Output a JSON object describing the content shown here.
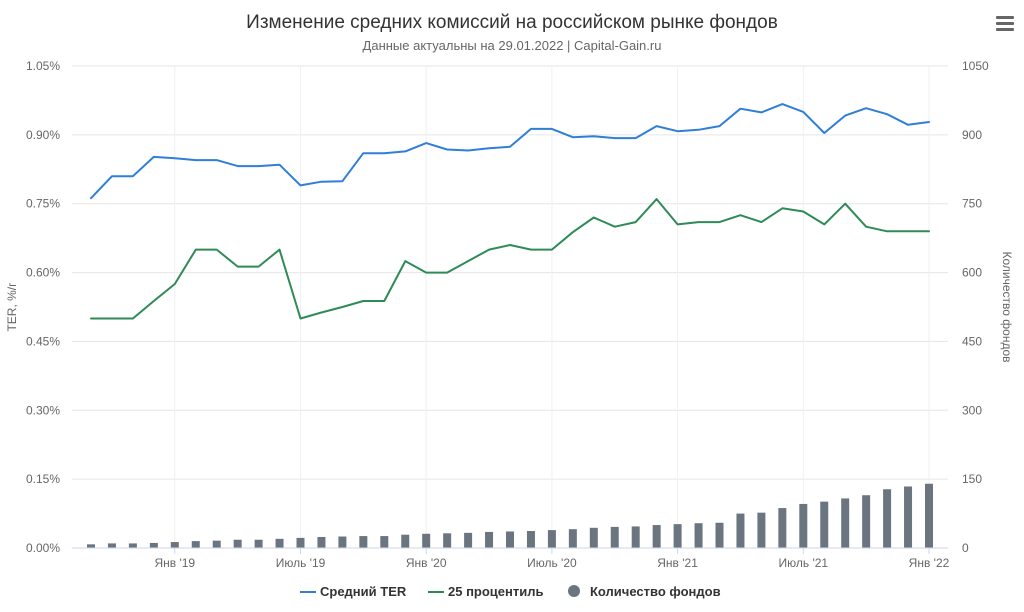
{
  "chart_data": {
    "type": "line",
    "title": "Изменение средних комиссий на российском рынке фондов",
    "subtitle": "Данные актуальны на 29.01.2022 | Capital-Gain.ru",
    "ylabel_left": "TER, %/г",
    "ylabel_right": "Количество фондов",
    "ylim_left": [
      0,
      1.05
    ],
    "ylim_right": [
      0,
      1050
    ],
    "y_ticks_left": [
      "0.00%",
      "0.15%",
      "0.30%",
      "0.45%",
      "0.60%",
      "0.75%",
      "0.90%",
      "1.05%"
    ],
    "y_ticks_right": [
      "0",
      "150",
      "300",
      "450",
      "600",
      "750",
      "900",
      "1050"
    ],
    "x_ticks": [
      {
        "index": 4,
        "label": "Янв '19"
      },
      {
        "index": 10,
        "label": "Июль '19"
      },
      {
        "index": 16,
        "label": "Янв '20"
      },
      {
        "index": 22,
        "label": "Июль '20"
      },
      {
        "index": 28,
        "label": "Янв '21"
      },
      {
        "index": 34,
        "label": "Июль '21"
      },
      {
        "index": 40,
        "label": "Янв '22"
      }
    ],
    "grid": true,
    "legend_position": "bottom",
    "series": [
      {
        "name": "Средний TER",
        "type": "line",
        "axis": "left",
        "color": "#2f7ed8",
        "values": [
          0.762,
          0.81,
          0.81,
          0.852,
          0.849,
          0.845,
          0.845,
          0.832,
          0.832,
          0.835,
          0.79,
          0.798,
          0.799,
          0.86,
          0.86,
          0.864,
          0.882,
          0.868,
          0.866,
          0.871,
          0.874,
          0.913,
          0.913,
          0.895,
          0.897,
          0.893,
          0.893,
          0.919,
          0.908,
          0.911,
          0.919,
          0.957,
          0.949,
          0.967,
          0.95,
          0.904,
          0.942,
          0.958,
          0.945,
          0.922,
          0.928
        ]
      },
      {
        "name": "25 процентиль",
        "type": "line",
        "axis": "left",
        "color": "#2e8b57",
        "values": [
          0.5,
          0.5,
          0.5,
          0.538,
          0.575,
          0.65,
          0.65,
          0.613,
          0.613,
          0.65,
          0.5,
          0.513,
          0.525,
          0.538,
          0.538,
          0.625,
          0.6,
          0.6,
          0.625,
          0.65,
          0.66,
          0.65,
          0.65,
          0.688,
          0.72,
          0.7,
          0.71,
          0.76,
          0.705,
          0.71,
          0.71,
          0.725,
          0.71,
          0.74,
          0.733,
          0.705,
          0.75,
          0.7,
          0.69,
          0.69,
          0.69
        ]
      },
      {
        "name": "Количество фондов",
        "type": "bar",
        "axis": "right",
        "color": "#6b7580",
        "values": [
          8,
          10,
          10,
          11,
          13,
          15,
          16,
          18,
          18,
          20,
          22,
          24,
          25,
          26,
          26,
          29,
          31,
          32,
          33,
          35,
          36,
          37,
          39,
          41,
          44,
          46,
          47,
          50,
          52,
          54,
          55,
          75,
          77,
          87,
          96,
          101,
          108,
          115,
          128,
          134,
          140
        ]
      }
    ]
  }
}
